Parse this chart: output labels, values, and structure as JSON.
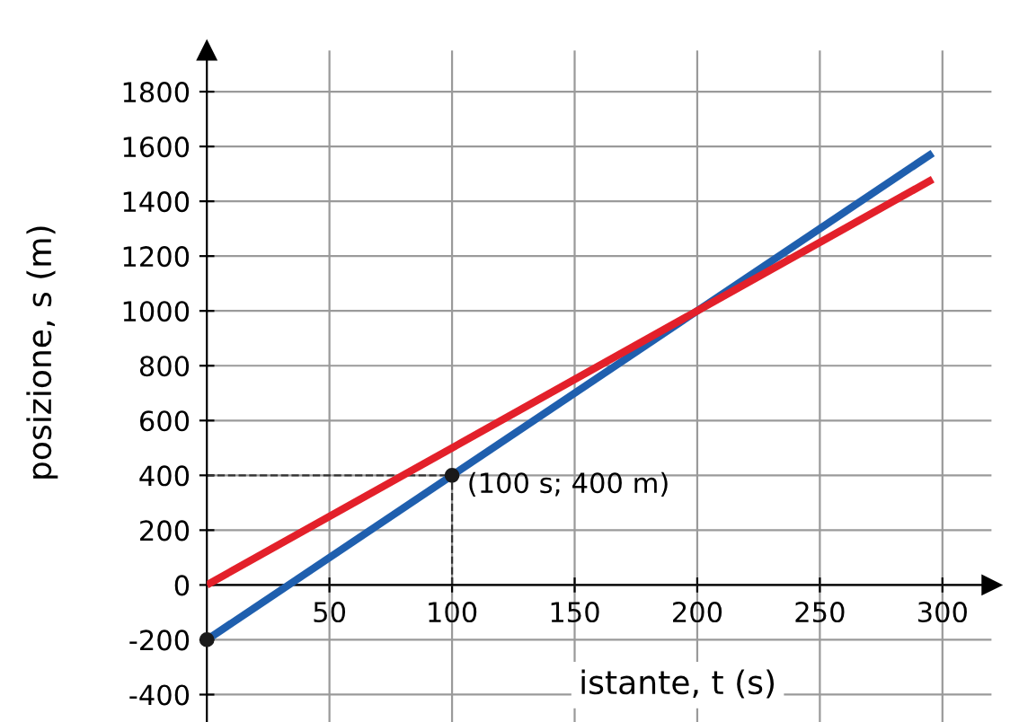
{
  "chart_data": {
    "type": "line",
    "xlabel": "istante, t (s)",
    "ylabel": "posizione, s (m)",
    "xlim": [
      0,
      320
    ],
    "ylim": [
      -500,
      1950
    ],
    "xticks": [
      50,
      100,
      150,
      200,
      250,
      300
    ],
    "yticks": [
      -400,
      -200,
      0,
      200,
      400,
      600,
      800,
      1000,
      1200,
      1400,
      1600,
      1800
    ],
    "grid": true,
    "legend": false,
    "series": [
      {
        "color": "#1f5fae",
        "x": [
          0,
          296
        ],
        "values": [
          -200,
          1576
        ]
      },
      {
        "color": "#e3202a",
        "x": [
          0,
          296
        ],
        "values": [
          0,
          1480
        ]
      },
      {
        "type": "scatter",
        "color": "#1a1a1a",
        "x": [
          0,
          100
        ],
        "values": [
          -200,
          400
        ]
      }
    ],
    "annotations": [
      {
        "text": "(100 s; 400 m)",
        "x": 100,
        "y": 400
      }
    ]
  }
}
